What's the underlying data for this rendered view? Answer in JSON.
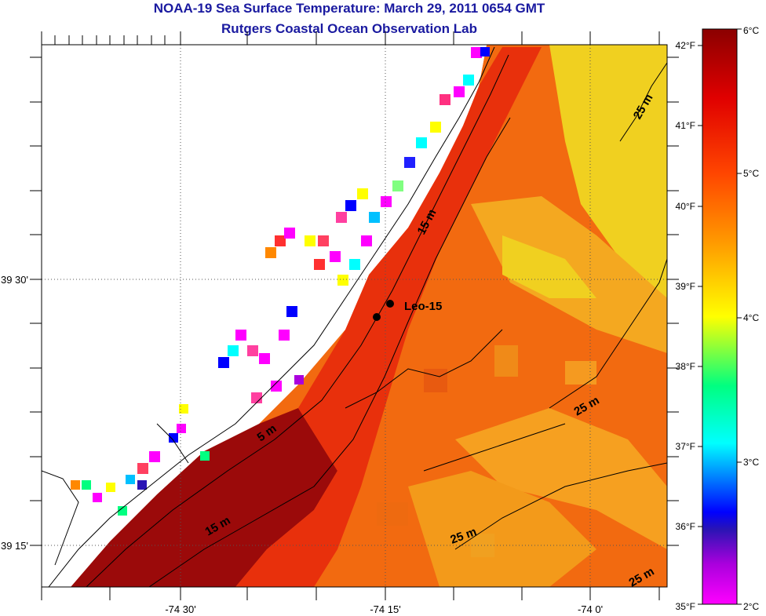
{
  "title": "NOAA-19 Sea Surface Temperature:  March 29, 2011 0654 GMT",
  "subtitle": "Rutgers Coastal Ocean Observation Lab",
  "map": {
    "lon_labels": [
      "-74 30'",
      "-74 15'",
      "-74 0'"
    ],
    "lat_labels": [
      "39 30'",
      "39 15'"
    ],
    "station_label": "Leo-15",
    "depth_labels": [
      "15 m",
      "5 m",
      "15 m",
      "25 m",
      "25 m",
      "25 m",
      "25 m"
    ]
  },
  "colorbar": {
    "fahrenheit_labels": [
      "42°F",
      "41°F",
      "40°F",
      "39°F",
      "38°F",
      "37°F",
      "36°F",
      "35°F"
    ],
    "celsius_labels": [
      "6°C",
      "5°C",
      "4°C",
      "3°C",
      "2°C"
    ],
    "colors": [
      "#8b0000",
      "#e00000",
      "#ff4500",
      "#ff9900",
      "#ffff00",
      "#00ff80",
      "#00ffff",
      "#0000ff",
      "#ff00ff"
    ]
  }
}
